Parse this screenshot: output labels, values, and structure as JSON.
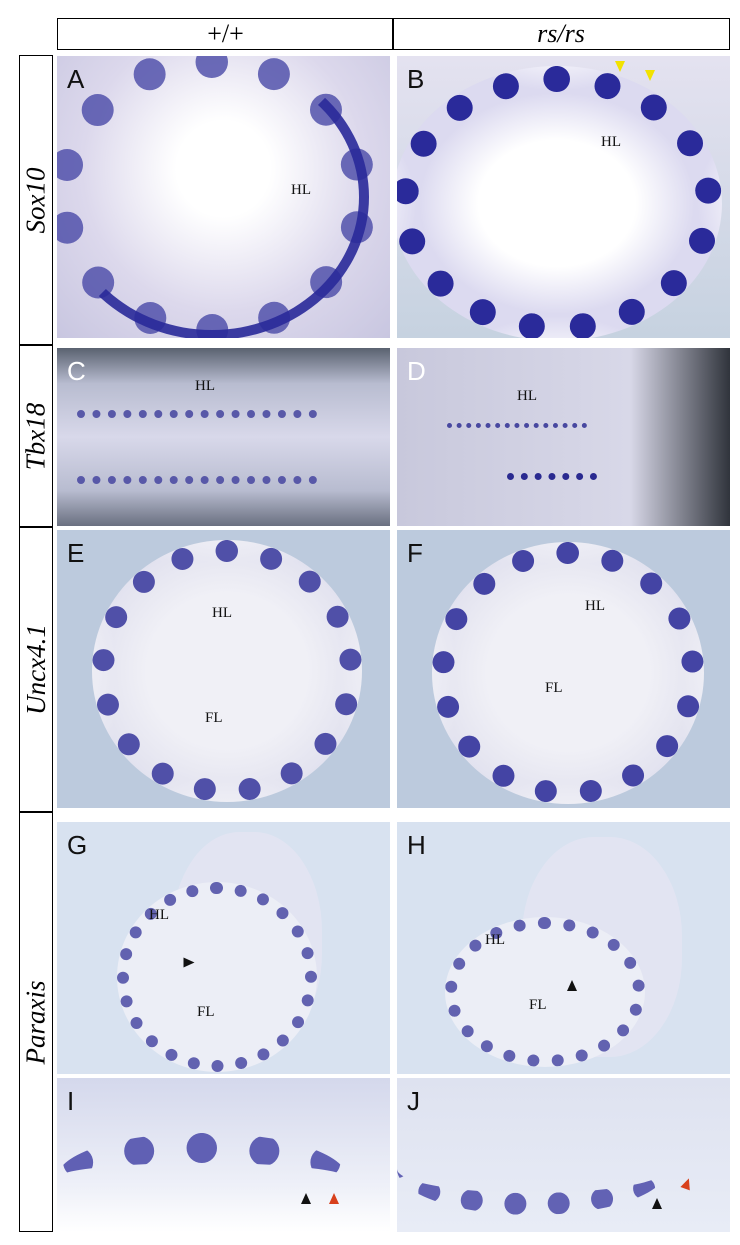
{
  "columns": [
    "+/+",
    "rs/rs"
  ],
  "rows": [
    "Sox10",
    "Tbx18",
    "Uncx4.1",
    "Paraxis"
  ],
  "panels": {
    "A": {
      "letter": "A",
      "labels": [
        "HL"
      ]
    },
    "B": {
      "letter": "B",
      "labels": [
        "HL"
      ]
    },
    "C": {
      "letter": "C",
      "labels": [
        "HL"
      ]
    },
    "D": {
      "letter": "D",
      "labels": [
        "HL"
      ]
    },
    "E": {
      "letter": "E",
      "labels": [
        "HL",
        "FL"
      ]
    },
    "F": {
      "letter": "F",
      "labels": [
        "HL",
        "FL"
      ]
    },
    "G": {
      "letter": "G",
      "labels": [
        "HL",
        "FL"
      ]
    },
    "H": {
      "letter": "H",
      "labels": [
        "HL",
        "FL"
      ]
    },
    "I": {
      "letter": "I"
    },
    "J": {
      "letter": "J"
    }
  },
  "colors": {
    "stain": "#2a2a9a",
    "arrow_yellow": "#f2e200",
    "arrow_black": "#111111",
    "arrow_red": "#d8401c"
  }
}
